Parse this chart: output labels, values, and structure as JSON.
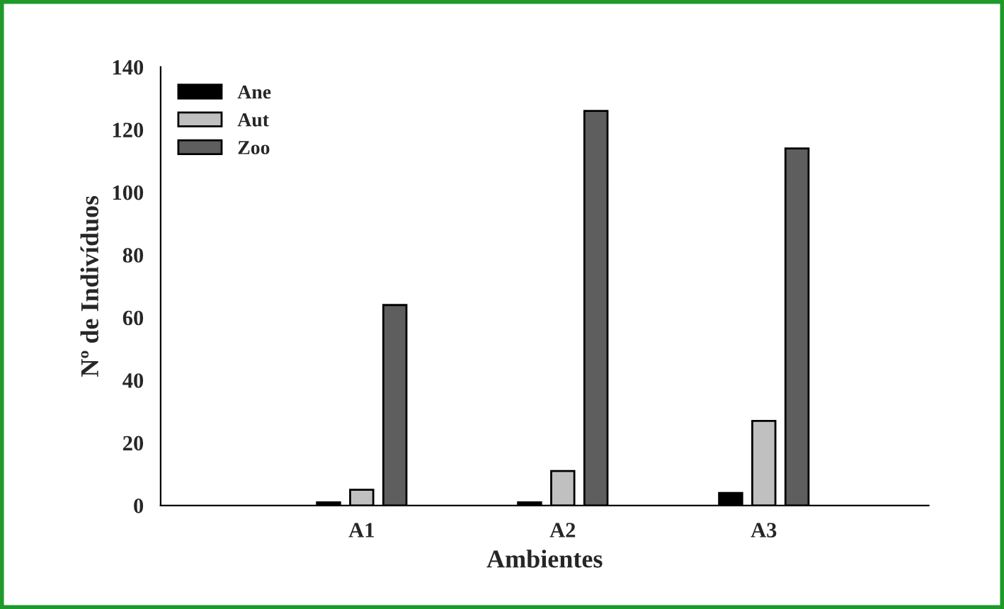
{
  "chart_data": {
    "type": "bar",
    "xlabel": "Ambientes",
    "ylabel": "Nº de Indivíduos",
    "categories": [
      "A1",
      "A2",
      "A3"
    ],
    "series": [
      {
        "name": "Ane",
        "color": "#000000",
        "values": [
          1,
          1,
          4
        ]
      },
      {
        "name": "Aut",
        "color": "#c0c0c0",
        "values": [
          5,
          11,
          27
        ]
      },
      {
        "name": "Zoo",
        "color": "#5e5e5e",
        "values": [
          64,
          126,
          114
        ]
      }
    ],
    "ylim": [
      0,
      140
    ],
    "yticks": [
      0,
      20,
      40,
      60,
      80,
      100,
      120,
      140
    ],
    "grid": false,
    "legend": "top left"
  }
}
